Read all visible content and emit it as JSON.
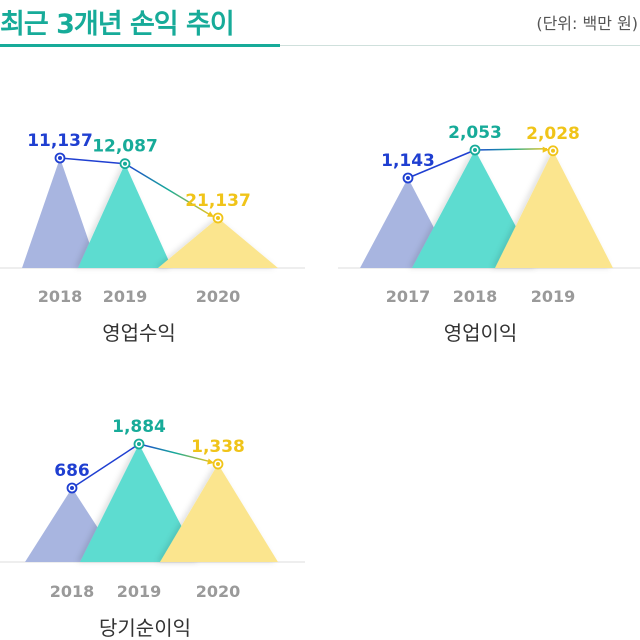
{
  "header": {
    "title": "최근 3개년 손익 추이",
    "unit": "(단위: 백만 원)"
  },
  "colors": {
    "accent": "#17ab99",
    "tri_blue": "#a8b5e0",
    "tri_teal": "#5ddcd0",
    "tri_yellow": "#fbe58e",
    "label_blue": "#1f3fd1",
    "label_teal": "#17ab99",
    "label_yellow": "#f0c419",
    "year_gray": "#9a9a9a",
    "baseline": "#dddddd"
  },
  "chart_data": [
    {
      "type": "line",
      "title": "영업수익",
      "categories": [
        "2018",
        "2019",
        "2020"
      ],
      "values": [
        11137,
        12087,
        21137
      ],
      "labels": [
        "11,137",
        "12,087",
        "21,137"
      ]
    },
    {
      "type": "line",
      "title": "영업이익",
      "categories": [
        "2017",
        "2018",
        "2019"
      ],
      "values": [
        1143,
        2053,
        2028
      ],
      "labels": [
        "1,143",
        "2,053",
        "2,028"
      ]
    },
    {
      "type": "line",
      "title": "당기순이익",
      "categories": [
        "2018",
        "2019",
        "2020"
      ],
      "values": [
        686,
        1884,
        1338
      ],
      "labels": [
        "686",
        "1,884",
        "1,338"
      ]
    }
  ]
}
